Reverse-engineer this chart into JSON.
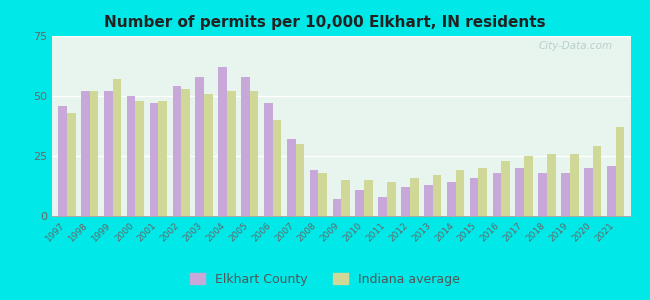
{
  "title": "Number of permits per 10,000 Elkhart, IN residents",
  "years": [
    1997,
    1998,
    1999,
    2000,
    2001,
    2002,
    2003,
    2004,
    2005,
    2006,
    2007,
    2008,
    2009,
    2010,
    2011,
    2012,
    2013,
    2014,
    2015,
    2016,
    2017,
    2018,
    2019,
    2020,
    2021
  ],
  "elkhart": [
    46,
    52,
    52,
    50,
    47,
    54,
    58,
    62,
    58,
    47,
    32,
    19,
    7,
    11,
    8,
    12,
    13,
    14,
    16,
    18,
    20,
    18,
    18,
    20,
    21
  ],
  "indiana": [
    43,
    52,
    57,
    48,
    48,
    53,
    51,
    52,
    52,
    40,
    30,
    18,
    15,
    15,
    14,
    16,
    17,
    19,
    20,
    23,
    25,
    26,
    26,
    29,
    37
  ],
  "elkhart_color": "#c8a8d8",
  "indiana_color": "#d0d898",
  "background_outer": "#00e8e8",
  "background_inner": "#e8f5ee",
  "ylim": [
    0,
    75
  ],
  "yticks": [
    0,
    25,
    50,
    75
  ],
  "bar_width": 0.38,
  "legend_elkhart": "Elkhart County",
  "legend_indiana": "Indiana average",
  "watermark": "City-Data.com"
}
